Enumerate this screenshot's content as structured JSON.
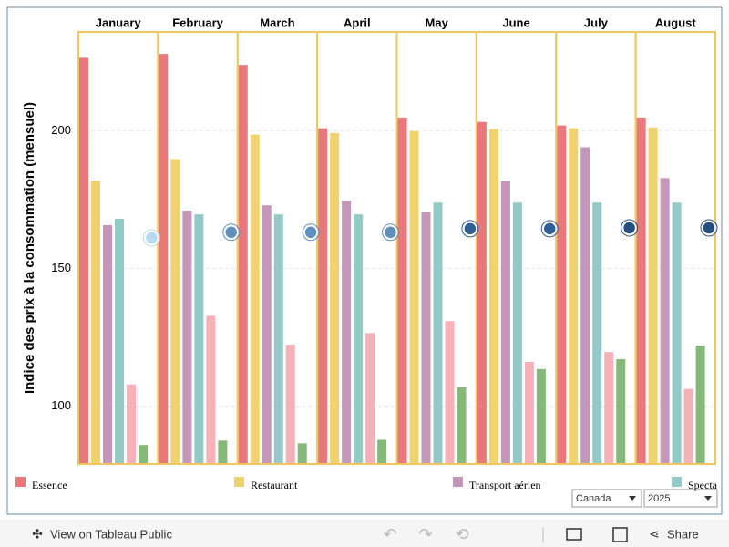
{
  "chart_data": {
    "type": "bar",
    "y_label": "Indice des prix à la consommation (mensuel)",
    "categories": [
      "January",
      "February",
      "March",
      "April",
      "May",
      "June",
      "July",
      "August"
    ],
    "series": [
      {
        "name": "Essence",
        "color": "#e8787a",
        "values": [
          226.6,
          228,
          224,
          201,
          204.9,
          203.3,
          202,
          204.9
        ]
      },
      {
        "name": "Restaurant",
        "color": "#f0d26e",
        "values": [
          181.9,
          189.8,
          198.7,
          199.3,
          200,
          200.7,
          201,
          201.3
        ]
      },
      {
        "name": "Transport aérien",
        "color": "#c496b9",
        "values": [
          165.8,
          171.1,
          173,
          174.7,
          170.7,
          181.9,
          194.1,
          182.9
        ]
      },
      {
        "name": "Specta",
        "color": "#93c9c6",
        "values": [
          168.1,
          169.7,
          169.7,
          169.7,
          174,
          174,
          174,
          174
        ]
      },
      {
        "color": "#f5b0b8",
        "values": [
          107.9,
          132.9,
          122.4,
          126.6,
          130.9,
          116.1,
          119.7,
          106.3
        ]
      },
      {
        "color": "#84b97a",
        "values": [
          85.9,
          87.5,
          86.5,
          87.8,
          106.9,
          113.5,
          117.1,
          122
        ]
      }
    ],
    "markers": {
      "values": [
        161.2,
        163.2,
        163.2,
        163.2,
        164.5,
        164.5,
        164.8,
        164.8
      ],
      "colors": [
        "#b9d9ee",
        "#5f8fbd",
        "#5f8fbd",
        "#5f8fbd",
        "#2f5f94",
        "#2f5f94",
        "#24507f",
        "#24507f"
      ]
    },
    "ylim": [
      79,
      236
    ],
    "yticks": [
      100,
      150,
      200
    ],
    "grid": true,
    "panel_color": "#f0c75e"
  },
  "filters": [
    "Canada",
    "2025"
  ],
  "toolbar": {
    "view": "View on Tableau Public",
    "share": "Share"
  }
}
